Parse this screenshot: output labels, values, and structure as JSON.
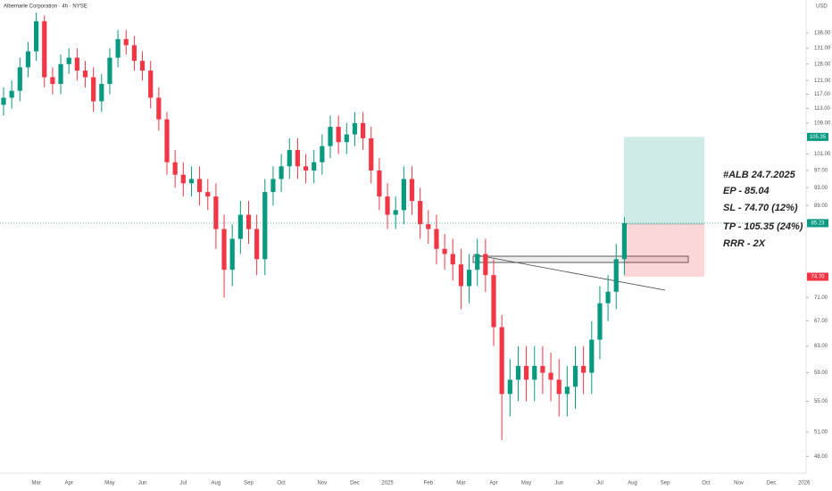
{
  "chart_data": {
    "type": "candlestick",
    "title": "Albemarle Corporation · 4h · NYSE",
    "currency": "USD",
    "log_scale": true,
    "grid": false,
    "ylim": [
      46.3,
      147.5
    ],
    "yticks": [
      {
        "value": 136,
        "label": "136.00"
      },
      {
        "value": 131,
        "label": "131.00"
      },
      {
        "value": 126,
        "label": "126.00"
      },
      {
        "value": 121,
        "label": "121.00"
      },
      {
        "value": 117,
        "label": "117.00"
      },
      {
        "value": 113,
        "label": "113.00"
      },
      {
        "value": 109,
        "label": "109.00"
      },
      {
        "value": 101,
        "label": "101.00"
      },
      {
        "value": 97,
        "label": "97.00"
      },
      {
        "value": 93,
        "label": "93.00"
      },
      {
        "value": 89,
        "label": "89.00"
      },
      {
        "value": 71,
        "label": "71.00"
      },
      {
        "value": 67,
        "label": "67.00"
      },
      {
        "value": 63,
        "label": "63.00"
      },
      {
        "value": 59,
        "label": "59.00"
      },
      {
        "value": 55,
        "label": "55.00"
      },
      {
        "value": 51,
        "label": "51.00"
      },
      {
        "value": 48,
        "label": "48.00"
      }
    ],
    "categories": [
      null,
      null,
      null,
      null,
      "Mar",
      null,
      null,
      null,
      "Apr",
      null,
      null,
      null,
      null,
      "May",
      null,
      null,
      null,
      "Jun",
      null,
      null,
      null,
      null,
      "Jul",
      null,
      null,
      null,
      "Aug",
      null,
      null,
      null,
      "Sep",
      null,
      null,
      null,
      "Oct",
      null,
      null,
      null,
      null,
      "Nov",
      null,
      null,
      null,
      "Dec",
      null,
      null,
      null,
      "2025",
      null,
      null,
      null,
      null,
      "Feb",
      null,
      null,
      null,
      "Mar",
      null,
      null,
      null,
      "Apr",
      null,
      null,
      null,
      "May",
      null,
      null,
      null,
      "Jun",
      null,
      null,
      null,
      null,
      "Jul",
      null,
      null,
      null,
      "Aug",
      null,
      null,
      null,
      "Sep",
      null,
      null,
      null,
      null,
      "Oct",
      null,
      null,
      null,
      "Nov",
      null,
      null,
      null,
      "Dec",
      null,
      null,
      null,
      "2026"
    ],
    "up_color": "#089981",
    "down_color": "#f23645",
    "open": [
      114,
      116,
      118,
      125,
      130,
      140,
      122,
      120,
      126,
      128,
      124,
      122,
      115,
      120,
      128,
      134,
      132,
      127,
      124,
      116,
      110,
      99,
      96,
      94,
      95,
      92,
      91,
      84,
      76,
      82,
      87,
      84,
      78,
      92,
      95,
      98,
      102,
      98,
      97,
      99,
      103,
      108,
      104,
      106,
      109,
      105,
      97,
      91,
      87,
      88,
      95,
      90,
      85,
      84,
      80,
      79,
      77,
      73,
      76,
      79,
      75,
      66,
      56,
      58,
      60,
      58,
      60,
      59,
      58,
      56,
      57,
      60,
      59,
      64,
      70,
      72,
      78,
      null,
      null,
      null,
      null,
      null,
      null,
      null,
      null,
      null,
      null,
      null,
      null,
      null,
      null,
      null,
      null,
      null,
      null,
      null,
      null,
      null,
      null
    ],
    "high": [
      119,
      121,
      128,
      133,
      143,
      142,
      125,
      129,
      131,
      131,
      127,
      125,
      123,
      131,
      137,
      137,
      135,
      130,
      127,
      119,
      112,
      102,
      99,
      98,
      98,
      95,
      94,
      87,
      85,
      90,
      90,
      87,
      95,
      98,
      101,
      105,
      105,
      101,
      102,
      106,
      111,
      111,
      109,
      112,
      112,
      108,
      100,
      94,
      91,
      98,
      98,
      93,
      88,
      87,
      83,
      82,
      80,
      79,
      82,
      82,
      78,
      68,
      61,
      63,
      63,
      63,
      63,
      62,
      61,
      60,
      63,
      63,
      67,
      73,
      75,
      81,
      86.5,
      null,
      null,
      null,
      null,
      null,
      null,
      null,
      null,
      null,
      null,
      null,
      null,
      null,
      null,
      null,
      null,
      null,
      null,
      null,
      null,
      null,
      null
    ],
    "low": [
      111,
      113,
      115,
      122,
      127,
      119,
      117,
      117,
      123,
      121,
      119,
      112,
      112,
      117,
      125,
      129,
      124,
      121,
      113,
      107,
      96,
      93,
      91,
      91,
      89,
      88,
      80,
      71,
      73,
      79,
      81,
      75,
      75,
      89,
      92,
      95,
      95,
      94,
      94,
      96,
      100,
      101,
      101,
      103,
      102,
      94,
      88,
      84,
      84,
      85,
      87,
      82,
      81,
      77,
      76,
      74,
      69,
      70,
      73,
      72,
      63,
      50,
      53,
      55,
      55,
      55,
      56,
      55,
      53,
      53,
      54,
      56,
      56,
      61,
      67,
      69,
      75,
      null,
      null,
      null,
      null,
      null,
      null,
      null,
      null,
      null,
      null,
      null,
      null,
      null,
      null,
      null,
      null,
      null,
      null,
      null,
      null,
      null,
      null
    ],
    "close": [
      116,
      118,
      125,
      130,
      140,
      122,
      120,
      126,
      128,
      124,
      122,
      115,
      120,
      128,
      134,
      132,
      127,
      124,
      116,
      110,
      99,
      96,
      94,
      95,
      92,
      91,
      84,
      76,
      82,
      87,
      84,
      78,
      92,
      95,
      98,
      102,
      98,
      97,
      99,
      103,
      108,
      104,
      106,
      109,
      105,
      97,
      91,
      87,
      88,
      95,
      90,
      85,
      84,
      80,
      79,
      77,
      73,
      76,
      79,
      75,
      66,
      56,
      58,
      60,
      58,
      60,
      59,
      58,
      56,
      57,
      60,
      59,
      64,
      70,
      72,
      78,
      85.23,
      null,
      null,
      null,
      null,
      null,
      null,
      null,
      null,
      null,
      null,
      null,
      null,
      null,
      null,
      null,
      null,
      null,
      null,
      null,
      null,
      null,
      null
    ],
    "position": {
      "target": 105.35,
      "entry": 85.04,
      "stop": {
        "value": 74.7,
        "label": "74.70"
      },
      "target_color": "#089981",
      "stop_color": "#f23645"
    },
    "annotations": [
      "#ALB 24.7.2025",
      "EP - 85.04",
      "SL - 74.70 (12%)",
      "TP - 105.35 (24%)",
      "RRR - 2X"
    ]
  }
}
